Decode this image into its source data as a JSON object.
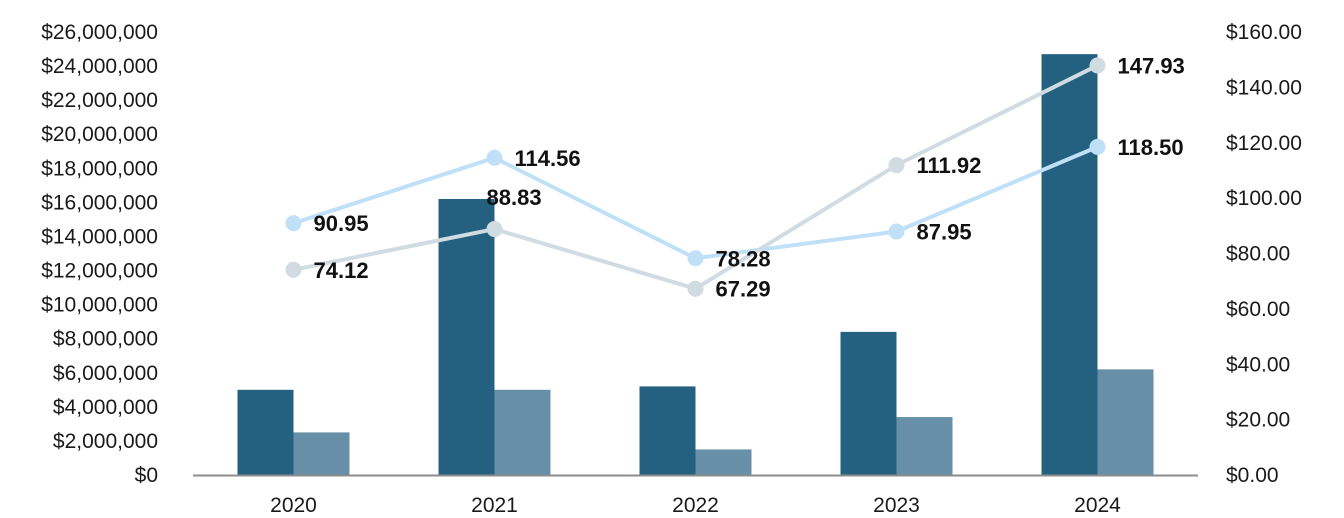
{
  "chart_data": {
    "type": "bar",
    "categories": [
      "2020",
      "2021",
      "2022",
      "2023",
      "2024"
    ],
    "left_axis": {
      "min": 0,
      "max": 26000000,
      "step": 2000000,
      "tick_labels": [
        "$0",
        "$2,000,000",
        "$4,000,000",
        "$6,000,000",
        "$8,000,000",
        "$10,000,000",
        "$12,000,000",
        "$14,000,000",
        "$16,000,000",
        "$18,000,000",
        "$20,000,000",
        "$22,000,000",
        "$24,000,000",
        "$26,000,000"
      ]
    },
    "right_axis": {
      "min": 0,
      "max": 160,
      "step": 20,
      "tick_labels": [
        "$0.00",
        "$20.00",
        "$40.00",
        "$60.00",
        "$80.00",
        "$100.00",
        "$120.00",
        "$140.00",
        "$160.00"
      ]
    },
    "bar_series": [
      {
        "axis": "left",
        "color": "#24607f",
        "values": [
          5000000,
          16200000,
          5200000,
          8400000,
          24700000
        ]
      },
      {
        "axis": "left",
        "color": "#6790a8",
        "values": [
          2500000,
          5000000,
          1500000,
          3400000,
          6200000
        ]
      }
    ],
    "line_series": [
      {
        "axis": "right",
        "color": "#bfe0f7",
        "values": [
          90.95,
          114.56,
          78.28,
          87.95,
          118.5
        ],
        "labels": [
          "90.95",
          "114.56",
          "78.28",
          "87.95",
          "118.50"
        ]
      },
      {
        "axis": "right",
        "color": "#d0dbe2",
        "values": [
          74.12,
          88.83,
          67.29,
          111.92,
          147.93
        ],
        "labels": [
          "74.12",
          "88.83",
          "67.29",
          "111.92",
          "147.93"
        ]
      }
    ],
    "legend": "none",
    "grid": false,
    "axis_line_color": "#8c8c8c"
  }
}
